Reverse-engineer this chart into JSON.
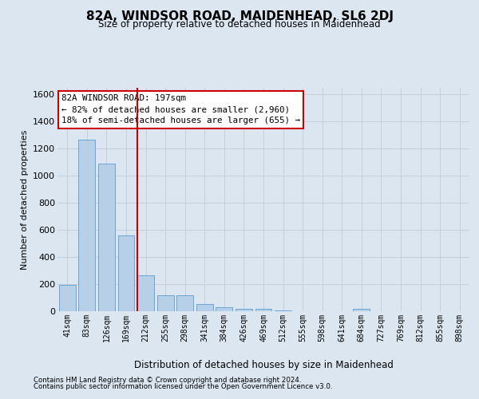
{
  "title": "82A, WINDSOR ROAD, MAIDENHEAD, SL6 2DJ",
  "subtitle": "Size of property relative to detached houses in Maidenhead",
  "xlabel": "Distribution of detached houses by size in Maidenhead",
  "ylabel": "Number of detached properties",
  "footer1": "Contains HM Land Registry data © Crown copyright and database right 2024.",
  "footer2": "Contains public sector information licensed under the Open Government Licence v3.0.",
  "categories": [
    "41sqm",
    "83sqm",
    "126sqm",
    "169sqm",
    "212sqm",
    "255sqm",
    "298sqm",
    "341sqm",
    "384sqm",
    "426sqm",
    "469sqm",
    "512sqm",
    "555sqm",
    "598sqm",
    "641sqm",
    "684sqm",
    "727sqm",
    "769sqm",
    "812sqm",
    "855sqm",
    "898sqm"
  ],
  "values": [
    195,
    1265,
    1090,
    560,
    265,
    120,
    120,
    55,
    30,
    20,
    15,
    5,
    0,
    0,
    0,
    20,
    0,
    0,
    0,
    0,
    0
  ],
  "bar_color": "#b8cfe8",
  "bar_edge_color": "#5b9bd5",
  "grid_color": "#c0ccd8",
  "background_color": "#dce6f1",
  "property_line_color": "#cc0000",
  "property_bar_index": 4,
  "annotation_line1": "82A WINDSOR ROAD: 197sqm",
  "annotation_line2": "← 82% of detached houses are smaller (2,960)",
  "annotation_line3": "18% of semi-detached houses are larger (655) →",
  "annotation_box_facecolor": "#ffffff",
  "annotation_box_edgecolor": "#cc0000",
  "ylim": [
    0,
    1650
  ],
  "yticks": [
    0,
    200,
    400,
    600,
    800,
    1000,
    1200,
    1400,
    1600
  ],
  "bar_width": 0.85
}
